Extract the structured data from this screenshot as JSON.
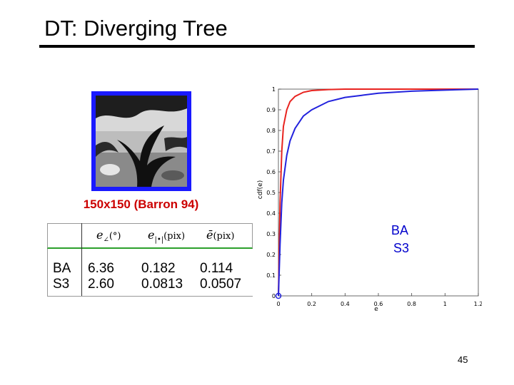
{
  "slide": {
    "title": "DT: Diverging Tree",
    "page_number": "45"
  },
  "thumbnail": {
    "caption": "150x150 (Barron 94)"
  },
  "table": {
    "headers": [
      {
        "main": "e",
        "sub": "∠",
        "unit": "(°)"
      },
      {
        "main": "e",
        "sub": "|•|",
        "unit": "(pix)"
      },
      {
        "main": "ē",
        "sub": "",
        "unit": "(pix)"
      }
    ],
    "rows": [
      {
        "method": "BA",
        "values": [
          "6.36",
          "0.182",
          "0.114"
        ]
      },
      {
        "method": "S3",
        "values": [
          "2.60",
          "0.0813",
          "0.0507"
        ]
      }
    ]
  },
  "side_labels": {
    "line1": "BA",
    "line2": "S3"
  },
  "chart_data": {
    "type": "line",
    "xlabel": "e",
    "ylabel": "cdf(e)",
    "xlim": [
      0,
      1.2
    ],
    "ylim": [
      0,
      1
    ],
    "xticks": [
      "0",
      "0.2",
      "0.4",
      "0.6",
      "0.8",
      "1",
      "1.2"
    ],
    "yticks": [
      "0",
      "0.1",
      "0.2",
      "0.3",
      "0.4",
      "0.5",
      "0.6",
      "0.7",
      "0.8",
      "0.9",
      "1"
    ],
    "series": [
      {
        "color": "#e8231f",
        "x": [
          0,
          0.01,
          0.02,
          0.03,
          0.05,
          0.07,
          0.1,
          0.15,
          0.2,
          0.3,
          0.4,
          0.6,
          0.8,
          1.0,
          1.2
        ],
        "y": [
          0,
          0.45,
          0.7,
          0.82,
          0.9,
          0.94,
          0.965,
          0.985,
          0.993,
          0.998,
          1.0,
          1.0,
          1.0,
          1.0,
          1.0
        ]
      },
      {
        "color": "#2222dd",
        "x": [
          0,
          0.01,
          0.02,
          0.03,
          0.05,
          0.07,
          0.1,
          0.15,
          0.2,
          0.3,
          0.4,
          0.5,
          0.6,
          0.8,
          1.0,
          1.2
        ],
        "y": [
          0,
          0.25,
          0.45,
          0.56,
          0.68,
          0.75,
          0.81,
          0.87,
          0.9,
          0.94,
          0.96,
          0.97,
          0.98,
          0.99,
          0.995,
          1.0
        ]
      }
    ],
    "grid": false
  }
}
